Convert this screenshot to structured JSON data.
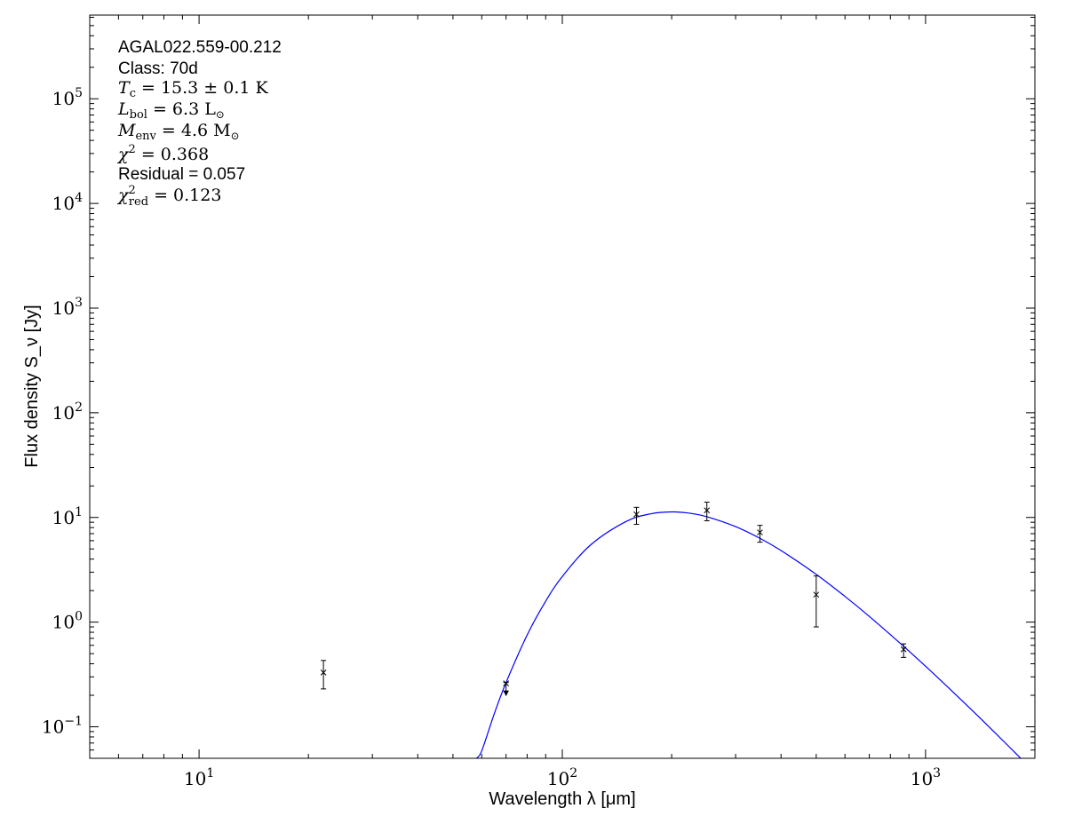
{
  "chart_data": {
    "type": "scatter",
    "xlabel": "Wavelength λ [μm]",
    "ylabel": "Flux density S_ν [Jy]",
    "xscale": "log",
    "yscale": "log",
    "xlim": [
      5,
      2000
    ],
    "ylim": [
      0.05,
      630000
    ],
    "grid": false,
    "x_ticks": [
      {
        "value": 10,
        "base": "10",
        "exp": "1"
      },
      {
        "value": 100,
        "base": "10",
        "exp": "2"
      },
      {
        "value": 1000,
        "base": "10",
        "exp": "3"
      }
    ],
    "y_ticks": [
      {
        "value": 0.1,
        "base": "10",
        "exp": "−1"
      },
      {
        "value": 1,
        "base": "10",
        "exp": "0"
      },
      {
        "value": 10,
        "base": "10",
        "exp": "1"
      },
      {
        "value": 100,
        "base": "10",
        "exp": "2"
      },
      {
        "value": 1000,
        "base": "10",
        "exp": "3"
      },
      {
        "value": 10000,
        "base": "10",
        "exp": "4"
      },
      {
        "value": 100000,
        "base": "10",
        "exp": "5"
      }
    ],
    "points": [
      {
        "x": 22,
        "y": 0.33,
        "err_hi": 0.43,
        "err_lo": 0.23,
        "upper_limit": false
      },
      {
        "x": 70,
        "y": 0.26,
        "err_hi": 0.265,
        "err_lo": 0.22,
        "upper_limit": true
      },
      {
        "x": 160,
        "y": 10.7,
        "err_hi": 12.5,
        "err_lo": 8.6,
        "upper_limit": false
      },
      {
        "x": 250,
        "y": 11.7,
        "err_hi": 14.0,
        "err_lo": 9.3,
        "upper_limit": false
      },
      {
        "x": 350,
        "y": 7.2,
        "err_hi": 8.4,
        "err_lo": 5.8,
        "upper_limit": false
      },
      {
        "x": 500,
        "y": 1.83,
        "err_hi": 2.76,
        "err_lo": 0.9,
        "upper_limit": false
      },
      {
        "x": 870,
        "y": 0.55,
        "err_hi": 0.62,
        "err_lo": 0.46,
        "upper_limit": false
      }
    ],
    "model_curve": {
      "color": "#0000ff",
      "x": [
        58,
        60,
        65,
        70,
        80,
        90,
        100,
        120,
        150,
        175,
        200,
        225,
        250,
        300,
        350,
        400,
        500,
        600,
        700,
        850,
        1000,
        1200,
        1400,
        1700,
        2000
      ],
      "y": [
        0.05,
        0.0588,
        0.134,
        0.2645,
        0.752,
        1.585,
        2.73,
        5.51,
        9.17,
        10.83,
        11.3,
        10.96,
        10.17,
        8.18,
        6.32,
        4.83,
        2.86,
        1.76,
        1.135,
        0.631,
        0.379,
        0.209,
        0.125,
        0.0643,
        0.0365
      ]
    },
    "annotations": {
      "source": "AGAL022.559-00.212",
      "class": "Class: 70d",
      "tc": {
        "sym": "T",
        "sub": "c",
        "val": " = 15.3 ± 0.1 K"
      },
      "lbol": {
        "sym": "L",
        "sub": "bol",
        "val": " = 6.3 L",
        "unit_sub": "⊙"
      },
      "menv": {
        "sym": "M",
        "sub": "env",
        "val": " = 4.6 M",
        "unit_sub": "⊙"
      },
      "chi2": {
        "sym": "χ",
        "sup": "2",
        "val": " = 0.368"
      },
      "residual": "Residual = 0.057",
      "chi2red": {
        "sym": "χ",
        "sup": "2",
        "sub": "red",
        "val": " = 0.123"
      }
    }
  }
}
